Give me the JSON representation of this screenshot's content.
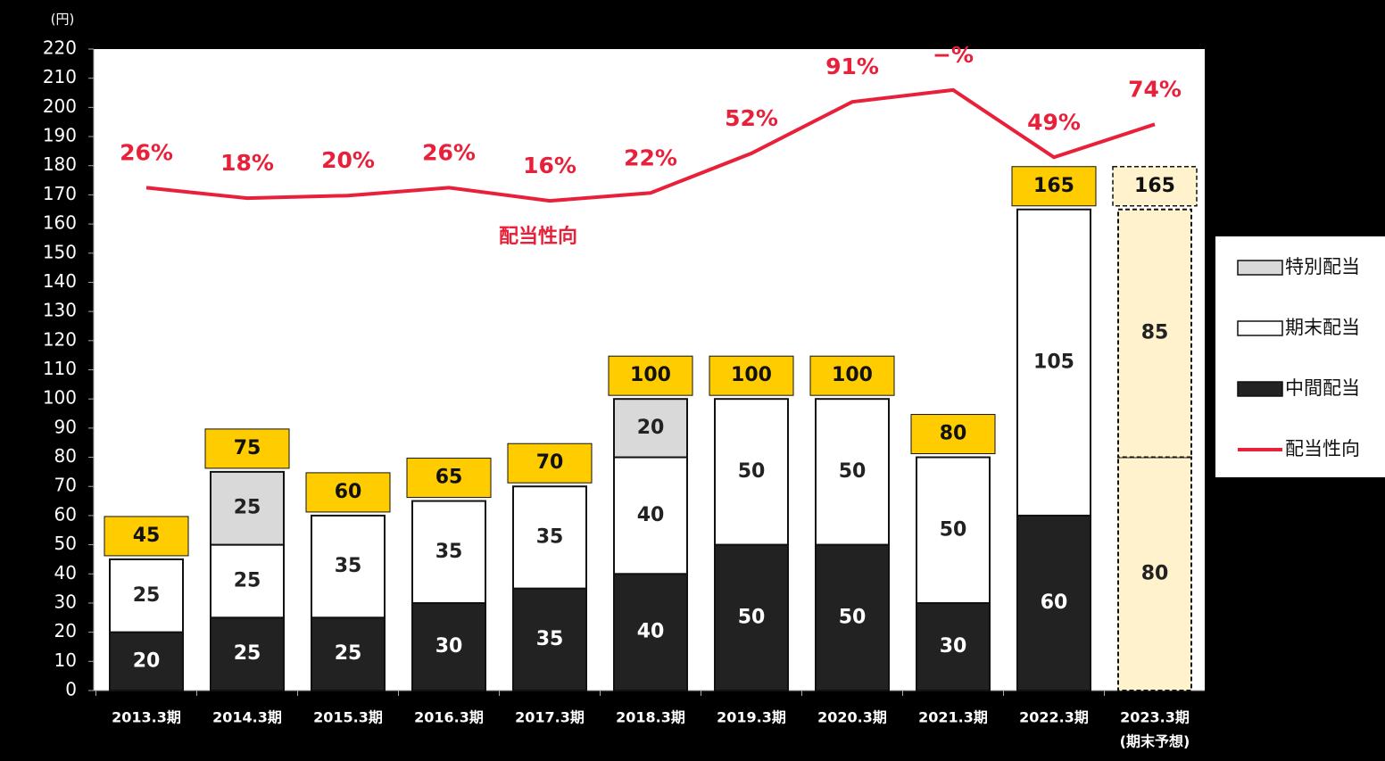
{
  "chart_data": {
    "type": "bar",
    "y_unit": "(円)",
    "categories": [
      "2013.3期",
      "2014.3期",
      "2015.3期",
      "2016.3期",
      "2017.3期",
      "2018.3期",
      "2019.3期",
      "2020.3期",
      "2021.3期",
      "2022.3期",
      "2023.3期"
    ],
    "category_sublabels": [
      null,
      null,
      null,
      null,
      null,
      null,
      null,
      null,
      null,
      null,
      "(期末予想)"
    ],
    "forecast_color": "#fff2cc",
    "series": [
      {
        "name": "中間配当",
        "color": "#222222",
        "values": [
          20,
          25,
          25,
          30,
          35,
          40,
          50,
          50,
          30,
          60,
          80
        ]
      },
      {
        "name": "期末配当",
        "color": "#ffffff",
        "values": [
          25,
          25,
          35,
          35,
          35,
          40,
          50,
          50,
          50,
          105,
          85
        ]
      },
      {
        "name": "特別配当",
        "color": "#d9d9d9",
        "values": [
          null,
          25,
          null,
          null,
          null,
          20,
          null,
          null,
          null,
          null,
          null
        ]
      },
      {
        "name": "配当性向",
        "type": "line",
        "axis": "y2",
        "color": "#e8203a",
        "values": [
          26,
          18,
          20,
          26,
          16,
          22,
          52,
          91,
          100,
          49,
          74
        ],
        "value_labels": [
          "26%",
          "18%",
          "20%",
          "26%",
          "16%",
          "22%",
          "52%",
          "91%",
          "−%",
          "49%",
          "74%"
        ]
      }
    ],
    "totals": [
      45,
      75,
      60,
      65,
      70,
      100,
      100,
      100,
      80,
      165,
      165
    ],
    "totals_color": "#ffcc00",
    "annotation": "配当性向",
    "ylim": [
      0,
      220
    ],
    "yticks": [
      0,
      10,
      20,
      30,
      40,
      50,
      60,
      70,
      80,
      90,
      100,
      110,
      120,
      130,
      140,
      150,
      160,
      170,
      180,
      190,
      200,
      210,
      220
    ],
    "y2lim": [
      -355,
      131
    ]
  }
}
